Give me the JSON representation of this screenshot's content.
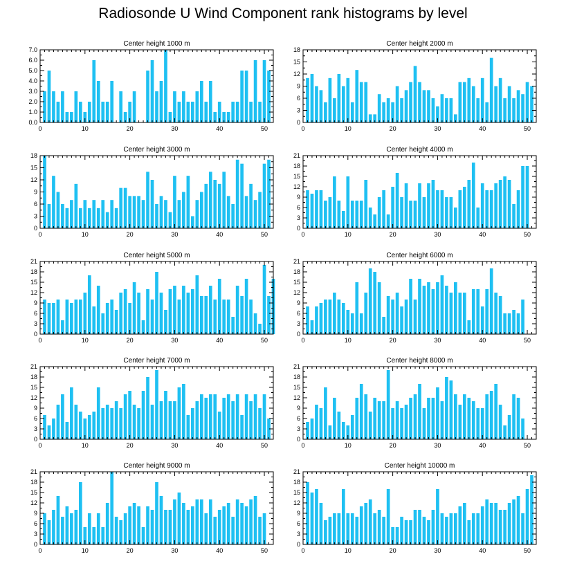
{
  "title": "Radiosonde U Wind Component rank histograms by level",
  "colors": {
    "bar": "#1ec0f2",
    "axis": "#000000",
    "background": "#ffffff"
  },
  "chart_data": [
    {
      "type": "bar",
      "title": "Center height 1000 m",
      "xlim": [
        0,
        52
      ],
      "ylim": [
        0,
        7
      ],
      "xticks": [
        0,
        10,
        20,
        30,
        40,
        50
      ],
      "yticks": [
        "0.0",
        "1.0",
        "2.0",
        "3.0",
        "4.0",
        "5.0",
        "6.0",
        "7.0"
      ],
      "ytick_values": [
        0,
        1,
        2,
        3,
        4,
        5,
        6,
        7
      ],
      "values": [
        3,
        5,
        3,
        2,
        3,
        1,
        1,
        3,
        2,
        1,
        2,
        6,
        4,
        2,
        2,
        4,
        0,
        3,
        1,
        2,
        3,
        0,
        0,
        5,
        6,
        3,
        4,
        7,
        1,
        3,
        2,
        3,
        2,
        2,
        3,
        4,
        2,
        4,
        1,
        2,
        1,
        1,
        2,
        2,
        5,
        5,
        2,
        6,
        2,
        6,
        5
      ]
    },
    {
      "type": "bar",
      "title": "Center height 2000 m",
      "xlim": [
        0,
        52
      ],
      "ylim": [
        0,
        18
      ],
      "xticks": [
        0,
        10,
        20,
        30,
        40,
        50
      ],
      "yticks": [
        "0",
        "3",
        "6",
        "9",
        "12",
        "15",
        "18"
      ],
      "ytick_values": [
        0,
        3,
        6,
        9,
        12,
        15,
        18
      ],
      "values": [
        11,
        12,
        9,
        8,
        5,
        11,
        6,
        12,
        9,
        11,
        5,
        13,
        10,
        10,
        2,
        2,
        7,
        5,
        6,
        5,
        9,
        6,
        8,
        10,
        14,
        10,
        8,
        8,
        6,
        4,
        7,
        6,
        6,
        2,
        10,
        10,
        11,
        9,
        6,
        11,
        5,
        16,
        9,
        11,
        6,
        9,
        6,
        8,
        7,
        10,
        9
      ]
    },
    {
      "type": "bar",
      "title": "Center height 3000 m",
      "xlim": [
        0,
        52
      ],
      "ylim": [
        0,
        18
      ],
      "xticks": [
        0,
        10,
        20,
        30,
        40,
        50
      ],
      "yticks": [
        "0",
        "3",
        "6",
        "9",
        "12",
        "15",
        "18"
      ],
      "ytick_values": [
        0,
        3,
        6,
        9,
        12,
        15,
        18
      ],
      "values": [
        18,
        6,
        13,
        9,
        6,
        5,
        7,
        11,
        5,
        7,
        5,
        7,
        5,
        7,
        4,
        7,
        5,
        10,
        10,
        8,
        8,
        8,
        7,
        14,
        12,
        6,
        8,
        7,
        4,
        13,
        7,
        9,
        13,
        3,
        7,
        9,
        11,
        14,
        12,
        11,
        14,
        8,
        6,
        17,
        16,
        8,
        11,
        7,
        9,
        16,
        17
      ]
    },
    {
      "type": "bar",
      "title": "Center height 4000 m",
      "xlim": [
        0,
        52
      ],
      "ylim": [
        0,
        21
      ],
      "xticks": [
        0,
        10,
        20,
        30,
        40,
        50
      ],
      "yticks": [
        "0",
        "3",
        "6",
        "9",
        "12",
        "15",
        "18",
        "21"
      ],
      "ytick_values": [
        0,
        3,
        6,
        9,
        12,
        15,
        18,
        21
      ],
      "values": [
        11,
        10,
        11,
        11,
        8,
        9,
        15,
        8,
        5,
        15,
        8,
        8,
        8,
        14,
        6,
        4,
        9,
        11,
        4,
        12,
        16,
        9,
        13,
        8,
        8,
        13,
        9,
        13,
        14,
        11,
        11,
        9,
        9,
        6,
        11,
        12,
        14,
        19,
        6,
        13,
        11,
        11,
        13,
        14,
        15,
        14,
        7,
        11,
        18,
        18
      ]
    },
    {
      "type": "bar",
      "title": "Center height 5000 m",
      "xlim": [
        0,
        52
      ],
      "ylim": [
        0,
        21
      ],
      "xticks": [
        0,
        10,
        20,
        30,
        40,
        50
      ],
      "yticks": [
        "0",
        "3",
        "6",
        "9",
        "12",
        "15",
        "18",
        "21"
      ],
      "ytick_values": [
        0,
        3,
        6,
        9,
        12,
        15,
        18,
        21
      ],
      "values": [
        10,
        9,
        9,
        10,
        4,
        10,
        9,
        10,
        10,
        12,
        17,
        8,
        14,
        6,
        9,
        10,
        7,
        12,
        13,
        9,
        15,
        12,
        4,
        13,
        10,
        18,
        12,
        7,
        13,
        14,
        10,
        14,
        12,
        13,
        17,
        11,
        11,
        14,
        10,
        16,
        10,
        10,
        5,
        14,
        11,
        16,
        10,
        6,
        3,
        20,
        11,
        16
      ]
    },
    {
      "type": "bar",
      "title": "Center height 6000 m",
      "xlim": [
        0,
        52
      ],
      "ylim": [
        0,
        21
      ],
      "xticks": [
        0,
        10,
        20,
        30,
        40,
        50
      ],
      "yticks": [
        "0",
        "3",
        "6",
        "9",
        "12",
        "15",
        "18",
        "21"
      ],
      "ytick_values": [
        0,
        3,
        6,
        9,
        12,
        15,
        18,
        21
      ],
      "values": [
        8,
        4,
        8,
        9,
        10,
        10,
        12,
        10,
        9,
        7,
        6,
        15,
        6,
        12,
        19,
        18,
        15,
        5,
        11,
        10,
        12,
        8,
        10,
        16,
        10,
        16,
        14,
        15,
        13,
        15,
        17,
        14,
        12,
        15,
        12,
        12,
        4,
        13,
        13,
        8,
        13,
        19,
        12,
        11,
        6,
        6,
        7,
        6,
        10
      ]
    },
    {
      "type": "bar",
      "title": "Center height 7000 m",
      "xlim": [
        0,
        52
      ],
      "ylim": [
        0,
        21
      ],
      "xticks": [
        0,
        10,
        20,
        30,
        40,
        50
      ],
      "yticks": [
        "0",
        "3",
        "6",
        "9",
        "12",
        "15",
        "18",
        "21"
      ],
      "ytick_values": [
        0,
        3,
        6,
        9,
        12,
        15,
        18,
        21
      ],
      "values": [
        7,
        4,
        6,
        10,
        13,
        5,
        15,
        10,
        8,
        6,
        7,
        8,
        15,
        9,
        10,
        9,
        11,
        9,
        13,
        14,
        10,
        9,
        14,
        18,
        10,
        20,
        11,
        14,
        11,
        11,
        15,
        16,
        7,
        9,
        11,
        13,
        12,
        13,
        13,
        8,
        12,
        13,
        11,
        13,
        7,
        13,
        11,
        13,
        9,
        13,
        6
      ]
    },
    {
      "type": "bar",
      "title": "Center height 8000 m",
      "xlim": [
        0,
        52
      ],
      "ylim": [
        0,
        21
      ],
      "xticks": [
        0,
        10,
        20,
        30,
        40,
        50
      ],
      "yticks": [
        "0",
        "3",
        "6",
        "9",
        "12",
        "15",
        "18",
        "21"
      ],
      "ytick_values": [
        0,
        3,
        6,
        9,
        12,
        15,
        18,
        21
      ],
      "values": [
        5,
        6,
        10,
        9,
        15,
        4,
        12,
        8,
        5,
        4,
        7,
        12,
        16,
        13,
        8,
        12,
        11,
        11,
        20,
        9,
        11,
        9,
        10,
        12,
        13,
        16,
        9,
        12,
        12,
        15,
        11,
        18,
        17,
        13,
        10,
        13,
        12,
        11,
        9,
        9,
        13,
        14,
        16,
        10,
        4,
        7,
        13,
        12,
        6
      ]
    },
    {
      "type": "bar",
      "title": "Center height 9000 m",
      "xlim": [
        0,
        52
      ],
      "ylim": [
        0,
        21
      ],
      "xticks": [
        0,
        10,
        20,
        30,
        40,
        50
      ],
      "yticks": [
        "0",
        "3",
        "6",
        "9",
        "12",
        "15",
        "18",
        "21"
      ],
      "ytick_values": [
        0,
        3,
        6,
        9,
        12,
        15,
        18,
        21
      ],
      "values": [
        9,
        7,
        10,
        14,
        8,
        11,
        9,
        10,
        18,
        5,
        9,
        5,
        9,
        5,
        12,
        21,
        8,
        7,
        9,
        11,
        12,
        11,
        5,
        11,
        10,
        18,
        14,
        10,
        10,
        13,
        15,
        12,
        10,
        11,
        13,
        13,
        9,
        13,
        8,
        10,
        11,
        12,
        8,
        13,
        12,
        11,
        13,
        14,
        8,
        9
      ]
    },
    {
      "type": "bar",
      "title": "Center height 10000 m",
      "xlim": [
        0,
        52
      ],
      "ylim": [
        0,
        21
      ],
      "xticks": [
        0,
        10,
        20,
        30,
        40,
        50
      ],
      "yticks": [
        "0",
        "3",
        "6",
        "9",
        "12",
        "15",
        "18",
        "21"
      ],
      "ytick_values": [
        0,
        3,
        6,
        9,
        12,
        15,
        18,
        21
      ],
      "values": [
        18,
        15,
        16,
        12,
        7,
        8,
        9,
        9,
        16,
        9,
        9,
        8,
        11,
        12,
        13,
        9,
        10,
        8,
        16,
        5,
        5,
        8,
        7,
        7,
        10,
        10,
        8,
        7,
        10,
        16,
        9,
        8,
        9,
        9,
        11,
        12,
        7,
        9,
        9,
        11,
        13,
        12,
        12,
        10,
        10,
        12,
        13,
        14,
        9,
        16,
        20
      ]
    }
  ]
}
